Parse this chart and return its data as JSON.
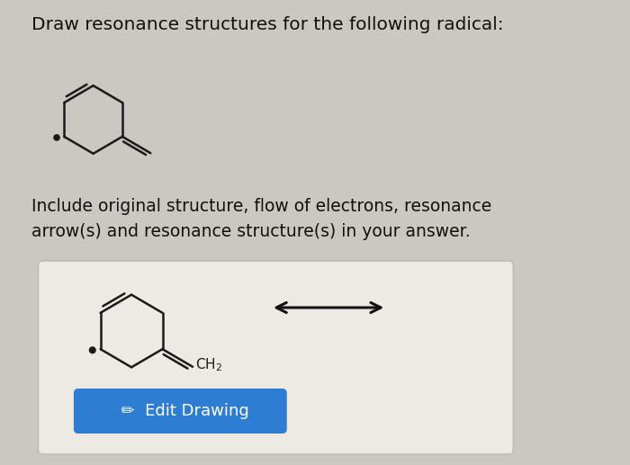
{
  "bg_color": "#cbc7c1",
  "title_text": "Draw resonance structures for the following radical:",
  "title_fontsize": 14.5,
  "instruction_text": "Include original structure, flow of electrons, resonance\narrow(s) and resonance structure(s) in your answer.",
  "instruction_fontsize": 13.5,
  "button_color": "#2d7dd2",
  "button_text": "  ✏  Edit Drawing",
  "button_text_color": "#ffffff",
  "button_fontsize": 13,
  "line_color": "#1a1a1a",
  "radical_dot_color": "#1a1a1a",
  "box_bg": "#ede9e3",
  "box_edge": "#c0bbb5"
}
